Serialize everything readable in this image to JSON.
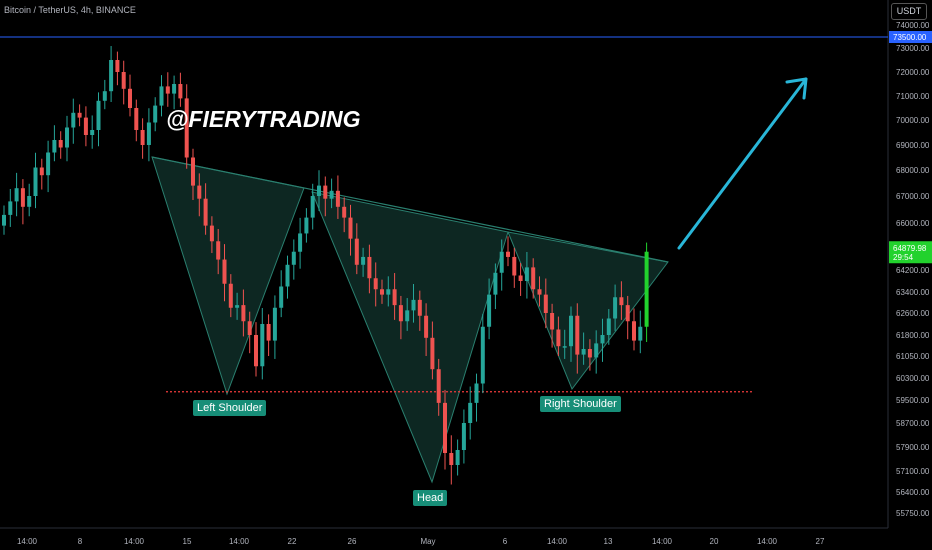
{
  "header": {
    "title": "Bitcoin / TetherUS, 4h, BINANCE"
  },
  "currency_button": "USDT",
  "watermark": "@FIERYTRADING",
  "labels": {
    "left_shoulder": "Left Shoulder",
    "head": "Head",
    "right_shoulder": "Right Shoulder"
  },
  "price_tags": {
    "resistance": "73500.00",
    "last_price": "64879.98",
    "countdown": "29:54"
  },
  "colors": {
    "up": "#26a69a",
    "up_bright": "#22d22d",
    "down": "#ef5350",
    "pattern_fill": "#0f2e28",
    "pattern_line": "#2a7f6f",
    "label_bg": "#178e78",
    "resistance_line": "#2962ff",
    "support_line": "#ef3b3b",
    "arrow": "#29b6d8"
  },
  "chart_data": {
    "type": "candlestick",
    "title": "Bitcoin / TetherUS, 4h, BINANCE",
    "y_axis_ticks": [
      "74000.00",
      "73000.00",
      "72000.00",
      "71000.00",
      "70000.00",
      "69000.00",
      "68000.00",
      "67000.00",
      "66000.00",
      "64200.00",
      "63400.00",
      "62600.00",
      "61800.00",
      "61050.00",
      "60300.00",
      "59500.00",
      "58700.00",
      "57900.00",
      "57100.00",
      "56400.00",
      "55750.00"
    ],
    "x_axis_ticks": [
      "14:00",
      "8",
      "14:00",
      "15",
      "14:00",
      "22",
      "26",
      "May",
      "6",
      "14:00",
      "13",
      "14:00",
      "20",
      "14:00",
      "27"
    ],
    "resistance_level": 73500,
    "last_price": 64879.98,
    "neckline_start": 68700,
    "neckline_end": 64500,
    "support_level": 59800,
    "pattern": [
      "Left Shoulder",
      "Head",
      "Right Shoulder"
    ],
    "approx_closes": [
      66300,
      66800,
      67300,
      66600,
      67000,
      68100,
      67800,
      68700,
      69200,
      68900,
      69700,
      70300,
      70100,
      69400,
      69600,
      70800,
      71200,
      72500,
      72000,
      71300,
      70500,
      69600,
      69000,
      69900,
      70600,
      71400,
      71100,
      71500,
      70900,
      68500,
      67400,
      66900,
      65900,
      65300,
      64600,
      63700,
      62800,
      62900,
      62300,
      61800,
      60700,
      62200,
      61600,
      62800,
      63600,
      64400,
      64900,
      65600,
      66200,
      67000,
      67400,
      66900,
      67200,
      66600,
      66200,
      65400,
      64400,
      64700,
      63900,
      63500,
      63300,
      63500,
      62900,
      62300,
      62700,
      63100,
      62500,
      61700,
      60600,
      59400,
      57700,
      57300,
      57800,
      58700,
      59400,
      60100,
      62100,
      63300,
      64100,
      64900,
      64700,
      64000,
      63800,
      64300,
      63500,
      63300,
      62600,
      62000,
      61400,
      61400,
      62500,
      61100,
      61300,
      61000,
      61500,
      61800,
      62400,
      63200,
      62900,
      62300,
      61600,
      62100,
      64900
    ]
  }
}
